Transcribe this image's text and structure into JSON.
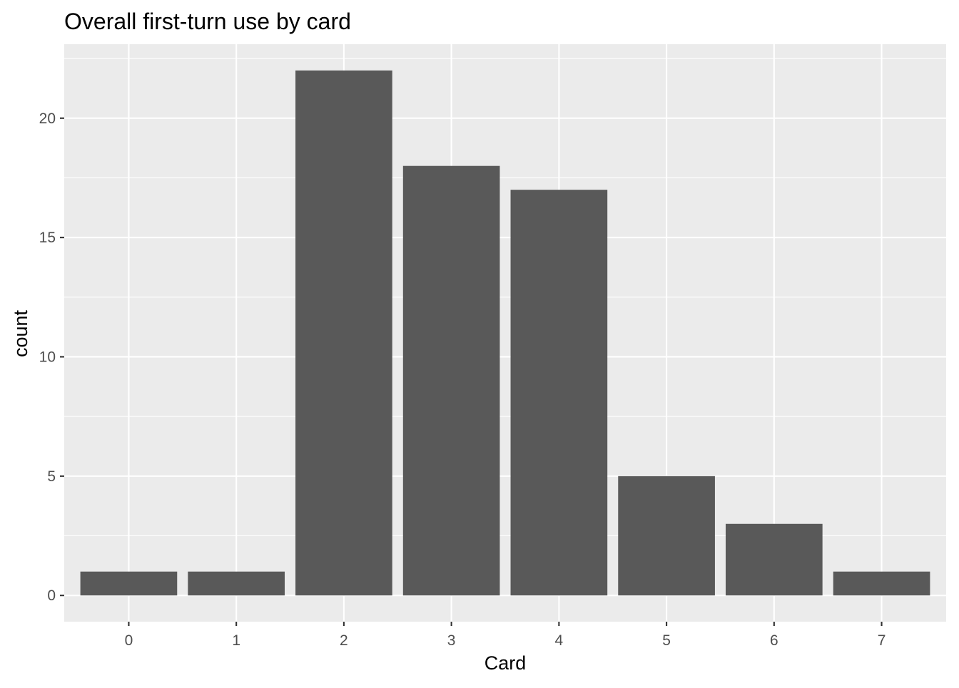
{
  "chart_data": {
    "type": "bar",
    "title": "Overall first-turn use by card",
    "xlabel": "Card",
    "ylabel": "count",
    "categories": [
      "0",
      "1",
      "2",
      "3",
      "4",
      "5",
      "6",
      "7"
    ],
    "values": [
      1,
      1,
      22,
      18,
      17,
      5,
      3,
      1
    ],
    "ylim": [
      -1.1,
      23.1
    ],
    "yticks": [
      "0",
      "5",
      "10",
      "15",
      "20"
    ],
    "grid": true,
    "legend": "none",
    "colors": {
      "bar": "#595959",
      "panel": "#ebebeb",
      "grid": "#ffffff"
    }
  }
}
